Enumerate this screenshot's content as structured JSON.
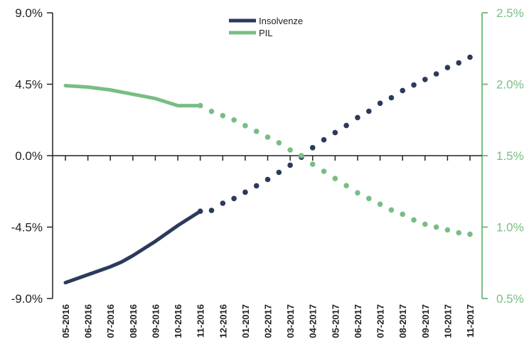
{
  "chart_data": {
    "type": "line",
    "title": "",
    "categories": [
      "05-2016",
      "06-2016",
      "07-2016",
      "08-2016",
      "09-2016",
      "10-2016",
      "11-2016",
      "12-2016",
      "01-2017",
      "02-2017",
      "03-2017",
      "04-2017",
      "05-2017",
      "06-2017",
      "07-2017",
      "08-2017",
      "09-2017",
      "10-2017",
      "11-2017"
    ],
    "x_tick_labels": [
      "05-2016",
      "06-2016",
      "07-2016",
      "08-2016",
      "09-2016",
      "10-2016",
      "11-2016",
      "12-2016",
      "01-2017",
      "02-2017",
      "03-2017",
      "04-2017",
      "05-2017",
      "06-2017",
      "07-2017",
      "08-2017",
      "09-2017",
      "10-2017",
      "11-2017"
    ],
    "y_left": {
      "ylim": [
        -9.0,
        9.0
      ],
      "ticks": [
        -9.0,
        -4.5,
        0.0,
        4.5,
        9.0
      ],
      "tick_labels": [
        "-9.0%",
        "-4.5%",
        "0.0%",
        "4.5%",
        "9.0%"
      ],
      "color": "#222222"
    },
    "y_right": {
      "ylim": [
        0.5,
        2.5
      ],
      "ticks": [
        0.5,
        1.0,
        1.5,
        2.0,
        2.5
      ],
      "tick_labels": [
        "0.5%",
        "1.0%",
        "1.5%",
        "2.0%",
        "2.5%"
      ],
      "color": "#79bd85"
    },
    "legend": {
      "placement": "top-center",
      "entries": [
        "Insolvenze",
        "PIL"
      ]
    },
    "grid": false,
    "series": [
      {
        "name": "Insolvenze",
        "axis": "left",
        "color": "#2b3a5c",
        "solid_until": "11-2016",
        "dotted_from": "11-2016",
        "points": [
          {
            "x": 0.0,
            "y": -8.0
          },
          {
            "x": 1.0,
            "y": -7.5
          },
          {
            "x": 2.0,
            "y": -7.0
          },
          {
            "x": 2.5,
            "y": -6.7
          },
          {
            "x": 3.0,
            "y": -6.3
          },
          {
            "x": 4.0,
            "y": -5.4
          },
          {
            "x": 5.0,
            "y": -4.4
          },
          {
            "x": 6.0,
            "y": -3.5
          },
          {
            "x": 6.5,
            "y": -3.45
          },
          {
            "x": 7.0,
            "y": -3.0
          },
          {
            "x": 7.5,
            "y": -2.7
          },
          {
            "x": 8.0,
            "y": -2.3
          },
          {
            "x": 8.5,
            "y": -1.9
          },
          {
            "x": 9.0,
            "y": -1.5
          },
          {
            "x": 9.5,
            "y": -1.05
          },
          {
            "x": 10.0,
            "y": -0.6
          },
          {
            "x": 10.5,
            "y": -0.1
          },
          {
            "x": 11.0,
            "y": 0.5
          },
          {
            "x": 11.5,
            "y": 1.0
          },
          {
            "x": 12.0,
            "y": 1.45
          },
          {
            "x": 12.5,
            "y": 1.9
          },
          {
            "x": 13.0,
            "y": 2.4
          },
          {
            "x": 13.5,
            "y": 2.8
          },
          {
            "x": 14.0,
            "y": 3.3
          },
          {
            "x": 14.5,
            "y": 3.65
          },
          {
            "x": 15.0,
            "y": 4.1
          },
          {
            "x": 15.5,
            "y": 4.45
          },
          {
            "x": 16.0,
            "y": 4.8
          },
          {
            "x": 16.5,
            "y": 5.15
          },
          {
            "x": 17.0,
            "y": 5.55
          },
          {
            "x": 17.5,
            "y": 5.85
          },
          {
            "x": 18.0,
            "y": 6.2
          }
        ]
      },
      {
        "name": "PIL",
        "axis": "right",
        "color": "#79bd85",
        "solid_until": "11-2016",
        "dotted_from": "11-2016",
        "points": [
          {
            "x": 0.0,
            "y": 1.99
          },
          {
            "x": 1.0,
            "y": 1.98
          },
          {
            "x": 2.0,
            "y": 1.96
          },
          {
            "x": 3.0,
            "y": 1.93
          },
          {
            "x": 4.0,
            "y": 1.9
          },
          {
            "x": 5.0,
            "y": 1.85
          },
          {
            "x": 6.0,
            "y": 1.85
          },
          {
            "x": 6.5,
            "y": 1.81
          },
          {
            "x": 7.0,
            "y": 1.78
          },
          {
            "x": 7.5,
            "y": 1.75
          },
          {
            "x": 8.0,
            "y": 1.71
          },
          {
            "x": 8.5,
            "y": 1.67
          },
          {
            "x": 9.0,
            "y": 1.63
          },
          {
            "x": 9.5,
            "y": 1.59
          },
          {
            "x": 10.0,
            "y": 1.54
          },
          {
            "x": 10.5,
            "y": 1.5
          },
          {
            "x": 11.0,
            "y": 1.44
          },
          {
            "x": 11.5,
            "y": 1.39
          },
          {
            "x": 12.0,
            "y": 1.34
          },
          {
            "x": 12.5,
            "y": 1.29
          },
          {
            "x": 13.0,
            "y": 1.24
          },
          {
            "x": 13.5,
            "y": 1.2
          },
          {
            "x": 14.0,
            "y": 1.16
          },
          {
            "x": 14.5,
            "y": 1.12
          },
          {
            "x": 15.0,
            "y": 1.09
          },
          {
            "x": 15.5,
            "y": 1.05
          },
          {
            "x": 16.0,
            "y": 1.02
          },
          {
            "x": 16.5,
            "y": 1.0
          },
          {
            "x": 17.0,
            "y": 0.98
          },
          {
            "x": 17.5,
            "y": 0.96
          },
          {
            "x": 18.0,
            "y": 0.95
          }
        ]
      }
    ]
  }
}
